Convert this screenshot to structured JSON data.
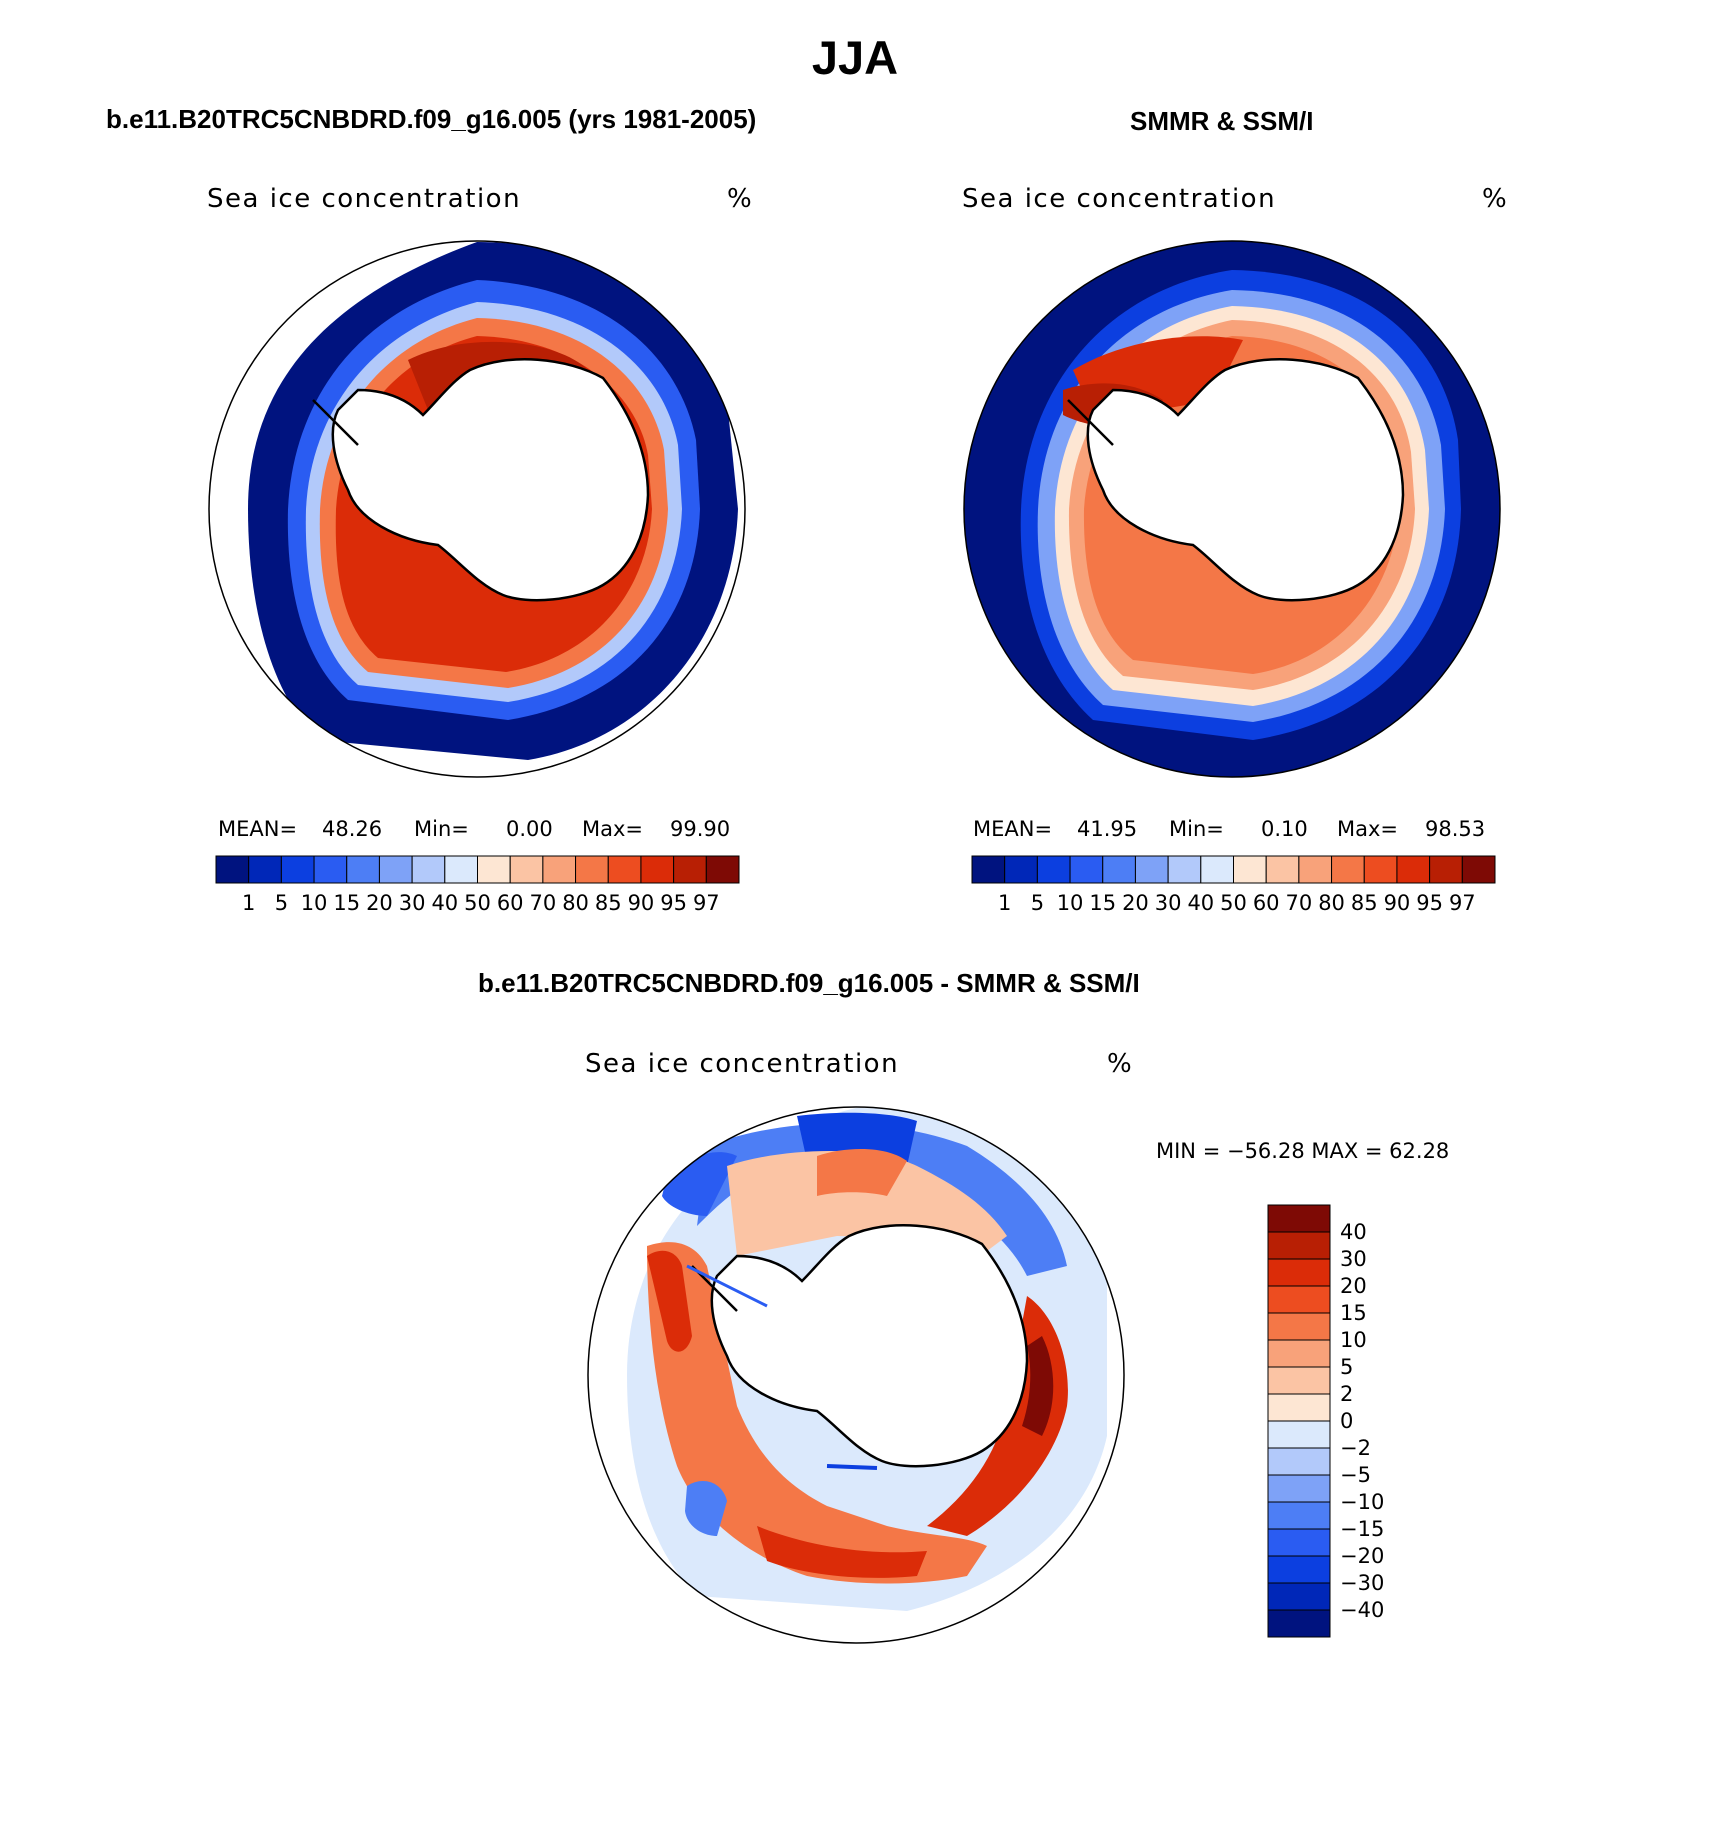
{
  "title": "JJA",
  "colors": {
    "ice_scale": [
      "#00137f",
      "#0027b8",
      "#0c3fe0",
      "#2a5cf2",
      "#4d7ef5",
      "#7ea2f7",
      "#b2c9fa",
      "#dbe9fc",
      "#fde6d3",
      "#fbc4a4",
      "#f8a27a",
      "#f47747",
      "#ed4d20",
      "#db2c08",
      "#b81f04",
      "#7e0a05"
    ],
    "diff_scale": [
      "#00137f",
      "#0027b8",
      "#0c3fe0",
      "#2a5cf2",
      "#4d7ef5",
      "#7ea2f7",
      "#b2c9fa",
      "#dbe9fc",
      "#fde6d3",
      "#fbc4a4",
      "#f8a27a",
      "#f47747",
      "#ed4d20",
      "#db2c08",
      "#b81f04",
      "#7e0a05"
    ]
  },
  "panels": [
    {
      "id": "model",
      "header": "b.e11.B20TRC5CNBDRD.f09_g16.005 (yrs 1981-2005)",
      "field": "Sea ice concentration",
      "units": "%",
      "stats": {
        "mean_label": "MEAN=",
        "mean": "48.26",
        "min_label": "Min=",
        "min": "0.00",
        "max_label": "Max=",
        "max": "99.90"
      },
      "colorbar_labels": [
        "1",
        "5",
        "10",
        "15",
        "20",
        "30",
        "40",
        "50",
        "60",
        "70",
        "80",
        "85",
        "90",
        "95",
        "97"
      ]
    },
    {
      "id": "obs",
      "header": "SMMR & SSM/I",
      "field": "Sea ice concentration",
      "units": "%",
      "stats": {
        "mean_label": "MEAN=",
        "mean": "41.95",
        "min_label": "Min=",
        "min": "0.10",
        "max_label": "Max=",
        "max": "98.53"
      },
      "colorbar_labels": [
        "1",
        "5",
        "10",
        "15",
        "20",
        "30",
        "40",
        "50",
        "60",
        "70",
        "80",
        "85",
        "90",
        "95",
        "97"
      ]
    },
    {
      "id": "diff",
      "header": "b.e11.B20TRC5CNBDRD.f09_g16.005 - SMMR & SSM/I",
      "field": "Sea ice concentration",
      "units": "%",
      "stats": {
        "text": "MIN = −56.28 MAX =   62.28"
      },
      "colorbar_labels": [
        "40",
        "30",
        "20",
        "15",
        "10",
        "5",
        "2",
        "0",
        "−2",
        "−5",
        "−10",
        "−15",
        "−20",
        "−30",
        "−40"
      ]
    }
  ]
}
